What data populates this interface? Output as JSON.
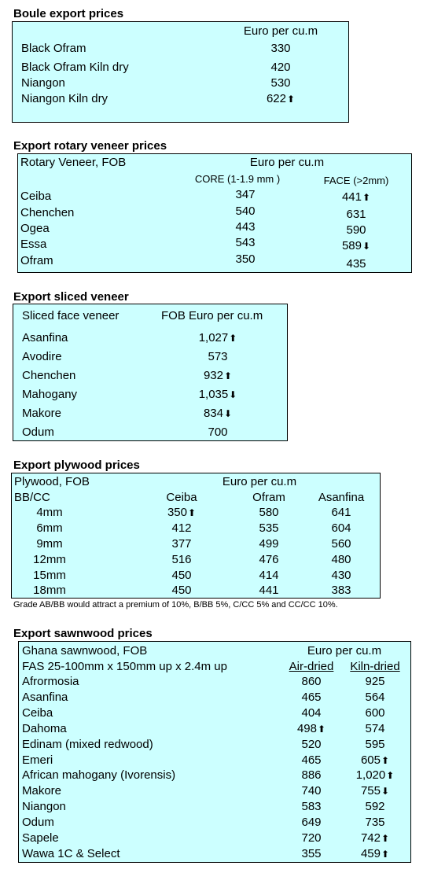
{
  "boule": {
    "title": "Boule export prices",
    "unit_header": "Euro per cu.m",
    "rows": [
      {
        "name": "Black Ofram",
        "value": "330",
        "trend": ""
      },
      {
        "name": "Black Ofram  Kiln dry",
        "value": "420",
        "trend": ""
      },
      {
        "name": "Niangon",
        "value": "530",
        "trend": ""
      },
      {
        "name": "Niangon Kiln dry",
        "value": "622",
        "trend": "up"
      }
    ]
  },
  "rotary": {
    "title": "Export rotary veneer prices",
    "label_header": "Rotary Veneer,  FOB",
    "unit_header": "Euro  per cu.m",
    "col1_header": "CORE (1-1.9 mm )",
    "col2_header": "FACE (>2mm)",
    "rows": [
      {
        "name": "Ceiba",
        "core": "347",
        "face": "441",
        "face_trend": "up"
      },
      {
        "name": "Chenchen",
        "core": "540",
        "face": "631",
        "face_trend": ""
      },
      {
        "name": "Ogea",
        "core": "443",
        "face": "590",
        "face_trend": ""
      },
      {
        "name": "Essa",
        "core": "543",
        "face": "589",
        "face_trend": "down"
      },
      {
        "name": "Ofram",
        "core": "350",
        "face": "435",
        "face_trend": ""
      }
    ]
  },
  "sliced": {
    "title": "Export sliced veneer",
    "label_header": "Sliced face veneer",
    "unit_header": "FOB Euro per cu.m",
    "rows": [
      {
        "name": "Asanfina",
        "value": "1,027",
        "trend": "up"
      },
      {
        "name": "Avodire",
        "value": "573",
        "trend": ""
      },
      {
        "name": "Chenchen",
        "value": "932",
        "trend": "up"
      },
      {
        "name": "Mahogany",
        "value": "1,035",
        "trend": "down"
      },
      {
        "name": "Makore",
        "value": "834",
        "trend": "down"
      },
      {
        "name": "Odum",
        "value": "700",
        "trend": ""
      }
    ]
  },
  "plywood": {
    "title": "Export plywood prices",
    "label_header": "Plywood, FOB",
    "unit_header": "Euro per cu.m",
    "grade_label": "BB/CC",
    "columns": [
      "Ceiba",
      "Ofram",
      "Asanfina"
    ],
    "rows": [
      {
        "size": "4mm",
        "values": [
          "350",
          "580",
          "641"
        ],
        "trends": [
          "up",
          "",
          ""
        ]
      },
      {
        "size": "6mm",
        "values": [
          "412",
          "535",
          "604"
        ],
        "trends": [
          "",
          "",
          ""
        ]
      },
      {
        "size": "9mm",
        "values": [
          "377",
          "499",
          "560"
        ],
        "trends": [
          "",
          "",
          ""
        ]
      },
      {
        "size": "12mm",
        "values": [
          "516",
          "476",
          "480"
        ],
        "trends": [
          "",
          "",
          ""
        ]
      },
      {
        "size": "15mm",
        "values": [
          "450",
          "414",
          "430"
        ],
        "trends": [
          "",
          "",
          ""
        ]
      },
      {
        "size": "18mm",
        "values": [
          "450",
          "441",
          "383"
        ],
        "trends": [
          "",
          "",
          ""
        ]
      }
    ],
    "note": "Grade AB/BB would attract a premium of 10%, B/BB 5%, C/CC 5% and CC/CC 10%."
  },
  "sawnwood": {
    "title": "Export sawnwood prices",
    "label_header": "Ghana sawnwood, FOB",
    "unit_header": "Euro per cu.m",
    "spec": "FAS 25-100mm x 150mm up x 2.4m up",
    "col1_header": "Air-dried",
    "col2_header": "Kiln-dried",
    "rows": [
      {
        "name": "Afrormosia",
        "air": "860",
        "air_trend": "",
        "kiln": "925",
        "kiln_trend": ""
      },
      {
        "name": "Asanfina",
        "air": "465",
        "air_trend": "",
        "kiln": "564",
        "kiln_trend": ""
      },
      {
        "name": "Ceiba",
        "air": "404",
        "air_trend": "",
        "kiln": "600",
        "kiln_trend": ""
      },
      {
        "name": "Dahoma",
        "air": "498",
        "air_trend": "up",
        "kiln": "574",
        "kiln_trend": ""
      },
      {
        "name": "Edinam (mixed redwood)",
        "air": "520",
        "air_trend": "",
        "kiln": "595",
        "kiln_trend": ""
      },
      {
        "name": "Emeri",
        "air": "465",
        "air_trend": "",
        "kiln": "605",
        "kiln_trend": "up"
      },
      {
        "name": "African mahogany (Ivorensis)",
        "air": "886",
        "air_trend": "",
        "kiln": "1,020",
        "kiln_trend": "up"
      },
      {
        "name": "Makore",
        "air": "740",
        "air_trend": "",
        "kiln": "755",
        "kiln_trend": "down"
      },
      {
        "name": "Niangon",
        "air": "583",
        "air_trend": "",
        "kiln": "592",
        "kiln_trend": ""
      },
      {
        "name": "Odum",
        "air": "649",
        "air_trend": "",
        "kiln": "735",
        "kiln_trend": ""
      },
      {
        "name": "Sapele",
        "air": "720",
        "air_trend": "",
        "kiln": "742",
        "kiln_trend": "up"
      },
      {
        "name": "Wawa 1C & Select",
        "air": "355",
        "air_trend": "",
        "kiln": "459",
        "kiln_trend": "up"
      }
    ]
  }
}
